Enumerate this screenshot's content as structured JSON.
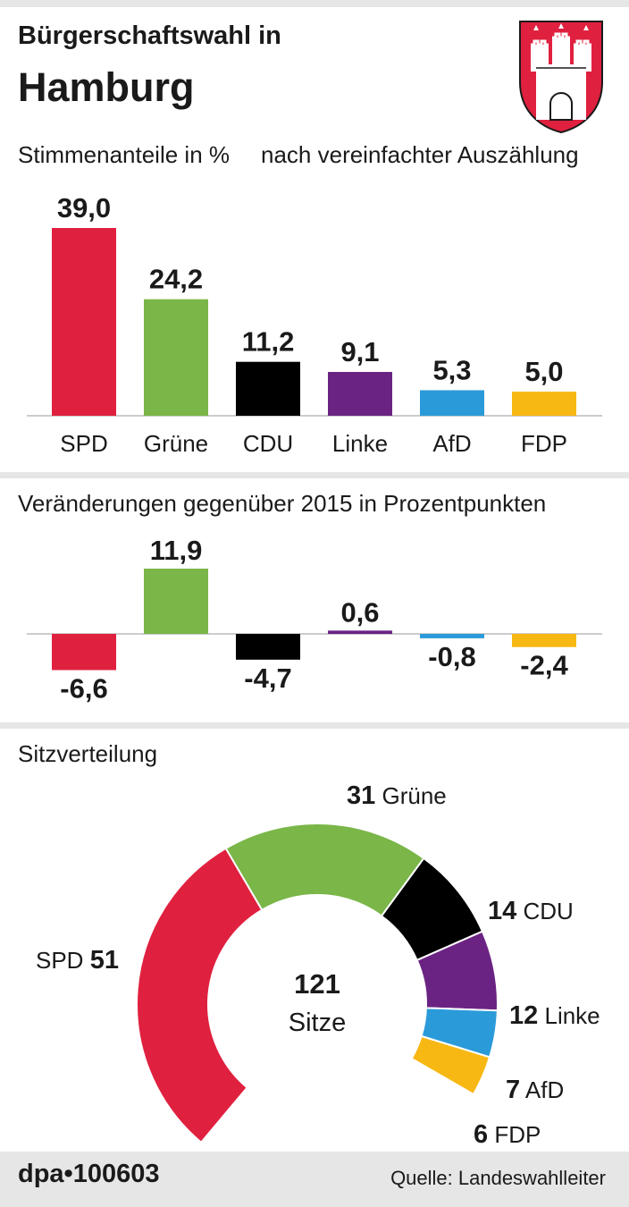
{
  "header": {
    "title_line1": "Bürgerschaftswahl in",
    "title_line2": "Hamburg",
    "crest_icon": "hamburg-coat-of-arms-icon"
  },
  "chart_data": [
    {
      "type": "bar",
      "title": "Stimmenanteile in %",
      "subtitle": "nach vereinfachter Auszählung",
      "categories": [
        "SPD",
        "Grüne",
        "CDU",
        "Linke",
        "AfD",
        "FDP"
      ],
      "values": [
        39.0,
        24.2,
        11.2,
        9.1,
        5.3,
        5.0
      ],
      "value_labels": [
        "39,0",
        "24,2",
        "11,2",
        "9,1",
        "5,3",
        "5,0"
      ],
      "colors": [
        "#e0203f",
        "#7ab648",
        "#000000",
        "#6b2383",
        "#2b9ad9",
        "#f7b814"
      ],
      "ylim": [
        0,
        40
      ],
      "grid": false
    },
    {
      "type": "bar",
      "title": "Veränderungen gegenüber 2015 in Prozentpunkten",
      "categories": [
        "SPD",
        "Grüne",
        "CDU",
        "Linke",
        "AfD",
        "FDP"
      ],
      "values": [
        -6.6,
        11.9,
        -4.7,
        0.6,
        -0.8,
        -2.4
      ],
      "value_labels": [
        "-6,6",
        "11,9",
        "-4,7",
        "0,6",
        "-0,8",
        "-2,4"
      ],
      "colors": [
        "#e0203f",
        "#7ab648",
        "#000000",
        "#6b2383",
        "#2b9ad9",
        "#f7b814"
      ],
      "ylim": [
        -7,
        13
      ],
      "grid": false
    },
    {
      "type": "pie",
      "title": "Sitzverteilung",
      "total": 121,
      "center_value": "121",
      "center_label": "Sitze",
      "categories": [
        "SPD",
        "Grüne",
        "CDU",
        "Linke",
        "AfD",
        "FDP"
      ],
      "values": [
        51,
        31,
        14,
        12,
        7,
        6
      ],
      "value_labels": [
        "51",
        "31",
        "14",
        "12",
        "7",
        "6"
      ],
      "colors": [
        "#e0203f",
        "#7ab648",
        "#000000",
        "#6b2383",
        "#2b9ad9",
        "#f7b814"
      ]
    }
  ],
  "footer": {
    "brand": "dpa•100603",
    "source": "Quelle: Landeswahlleiter"
  }
}
